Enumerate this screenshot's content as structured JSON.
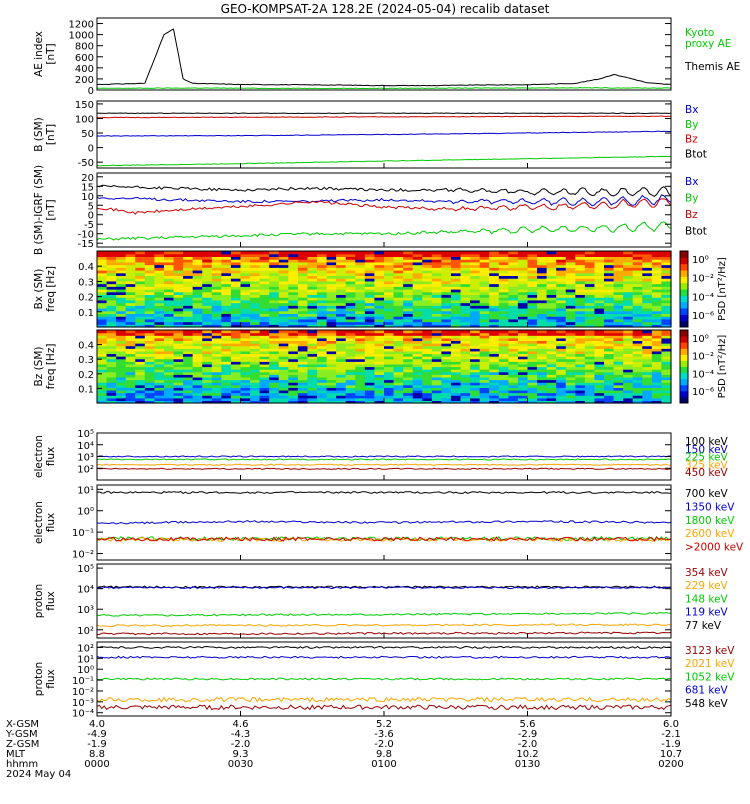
{
  "title": "GEO-KOMPSAT-2A 128.2E (2024-05-04) recalib dataset",
  "colors": {
    "black": "#000000",
    "red": "#cc0000",
    "blue": "#0000cc",
    "green": "#00cc00",
    "orange": "#ffa500",
    "darkred": "#990000",
    "lime": "#00ff00"
  },
  "chart_data": [
    {
      "type": "line",
      "ylabel": "AE index\n[nT]",
      "yticks": [
        "1200",
        "1000",
        "800",
        "600",
        "400",
        "200",
        "0"
      ],
      "ylim": [
        0,
        1300
      ],
      "legend": [
        {
          "label": "Kyoto\nproxy AE",
          "color": "#00cc00"
        },
        {
          "label": "Themis AE",
          "color": "#000000"
        }
      ],
      "series": [
        {
          "name": "Themis AE",
          "color": "#000000",
          "x": [
            0,
            5,
            10,
            14,
            16,
            18,
            20,
            22,
            25,
            30,
            40,
            50,
            60,
            70,
            80,
            90,
            100,
            105,
            108,
            112,
            115,
            118,
            120
          ],
          "y": [
            100,
            110,
            120,
            1000,
            1100,
            200,
            120,
            115,
            110,
            100,
            95,
            90,
            80,
            80,
            90,
            95,
            120,
            200,
            280,
            200,
            130,
            110,
            100
          ]
        },
        {
          "name": "Kyoto proxy AE",
          "color": "#00cc00",
          "x": [
            0,
            20,
            40,
            60,
            80,
            100,
            120
          ],
          "y": [
            30,
            35,
            30,
            30,
            35,
            40,
            35
          ]
        }
      ]
    },
    {
      "type": "line",
      "ylabel": "B (SM)\n[nT]",
      "yticks": [
        "150",
        "100",
        "50",
        "0",
        "-50"
      ],
      "ylim": [
        -70,
        160
      ],
      "legend": [
        {
          "label": "Bx",
          "color": "#0000cc"
        },
        {
          "label": "By",
          "color": "#00cc00"
        },
        {
          "label": "Bz",
          "color": "#cc0000"
        },
        {
          "label": "Btot",
          "color": "#000000"
        }
      ],
      "series": [
        {
          "name": "Btot",
          "color": "#000000",
          "x": [
            0,
            120
          ],
          "y": [
            118,
            118
          ]
        },
        {
          "name": "Bz",
          "color": "#cc0000",
          "x": [
            0,
            120
          ],
          "y": [
            103,
            108
          ]
        },
        {
          "name": "Bx",
          "color": "#0000cc",
          "x": [
            0,
            30,
            60,
            90,
            120
          ],
          "y": [
            40,
            41,
            45,
            50,
            56
          ]
        },
        {
          "name": "By",
          "color": "#00cc00",
          "x": [
            0,
            30,
            60,
            90,
            120
          ],
          "y": [
            -62,
            -55,
            -46,
            -38,
            -30
          ]
        }
      ]
    },
    {
      "type": "line",
      "ylabel": "B (SM)-IGRF (SM)\n[nT]",
      "yticks": [
        "20",
        "15",
        "10",
        "5",
        "0",
        "-5",
        "-10",
        "-15"
      ],
      "ylim": [
        -17,
        22
      ],
      "legend": [
        {
          "label": "Bx",
          "color": "#0000cc"
        },
        {
          "label": "By",
          "color": "#00cc00"
        },
        {
          "label": "Bz",
          "color": "#cc0000"
        },
        {
          "label": "Btot",
          "color": "#000000"
        }
      ],
      "series": [
        {
          "name": "Btot",
          "color": "#000000",
          "x": [
            0,
            15,
            30,
            45,
            60,
            75,
            90,
            105,
            120
          ],
          "y": [
            15,
            14,
            13,
            14,
            13,
            13,
            12,
            12,
            12
          ]
        },
        {
          "name": "Bx",
          "color": "#0000cc",
          "x": [
            0,
            15,
            30,
            45,
            60,
            75,
            90,
            105,
            120
          ],
          "y": [
            9,
            8,
            7,
            7,
            8,
            7,
            7,
            7,
            8
          ]
        },
        {
          "name": "Bz",
          "color": "#cc0000",
          "x": [
            0,
            8,
            20,
            35,
            45,
            60,
            75,
            90,
            105,
            120
          ],
          "y": [
            4,
            1,
            3,
            5,
            7,
            4,
            3,
            4,
            5,
            7
          ]
        },
        {
          "name": "By",
          "color": "#00cc00",
          "x": [
            0,
            15,
            30,
            45,
            60,
            75,
            90,
            105,
            120
          ],
          "y": [
            -13,
            -12,
            -11,
            -10,
            -10,
            -9,
            -8,
            -7,
            -6
          ]
        }
      ]
    },
    {
      "type": "heatmap",
      "ylabel": "Bx (SM)\nfreq [Hz]",
      "yticks": [
        "0.4",
        "0.3",
        "0.2",
        "0.1"
      ],
      "ylim": [
        0,
        0.5
      ],
      "colorbar": {
        "label": "PSD [nT²/Hz]",
        "ticks": [
          "10⁰",
          "10⁻²",
          "10⁻⁴",
          "10⁻⁶"
        ]
      }
    },
    {
      "type": "heatmap",
      "ylabel": "Bz (SM)\nfreq [Hz]",
      "yticks": [
        "0.4",
        "0.3",
        "0.2",
        "0.1"
      ],
      "ylim": [
        0,
        0.5
      ],
      "colorbar": {
        "label": "PSD [nT²/Hz]",
        "ticks": [
          "10⁰",
          "10⁻²",
          "10⁻⁴",
          "10⁻⁶"
        ]
      }
    },
    {
      "type": "line",
      "ylabel": "electron\nflux",
      "yscale": "log",
      "yticks": [
        "10⁵",
        "10⁴",
        "10³",
        "10²"
      ],
      "ylim_exp": [
        1,
        5
      ],
      "legend": [
        {
          "label": "100 keV",
          "color": "#000000"
        },
        {
          "label": "150 keV",
          "color": "#0000cc"
        },
        {
          "label": "225 keV",
          "color": "#00cc00"
        },
        {
          "label": "325 keV",
          "color": "#ffa500"
        },
        {
          "label": "450 keV",
          "color": "#990000"
        }
      ],
      "series": [
        {
          "name": "150 keV",
          "color": "#0000cc",
          "x": [
            0,
            120
          ],
          "y_exp": [
            3.0,
            3.0
          ]
        },
        {
          "name": "225 keV",
          "color": "#00cc00",
          "x": [
            0,
            120
          ],
          "y_exp": [
            2.75,
            2.75
          ]
        },
        {
          "name": "325 keV",
          "color": "#ffa500",
          "x": [
            0,
            120
          ],
          "y_exp": [
            2.3,
            2.3
          ]
        },
        {
          "name": "450 keV",
          "color": "#990000",
          "x": [
            0,
            120
          ],
          "y_exp": [
            1.95,
            1.95
          ]
        }
      ]
    },
    {
      "type": "line",
      "ylabel": "electron\nflux",
      "yscale": "log",
      "yticks": [
        "10¹",
        "10⁰",
        "10⁻¹",
        "10⁻²"
      ],
      "ylim_exp": [
        -2.3,
        1.2
      ],
      "legend": [
        {
          "label": "700 keV",
          "color": "#000000"
        },
        {
          "label": "1350 keV",
          "color": "#0000cc"
        },
        {
          "label": "1800 keV",
          "color": "#00cc00"
        },
        {
          "label": "2600 keV",
          "color": "#ffa500"
        },
        {
          "label": ">2000 keV",
          "color": "#cc0000"
        }
      ],
      "series": [
        {
          "name": "700 keV",
          "color": "#000000",
          "x": [
            0,
            120
          ],
          "y_exp": [
            0.85,
            0.85
          ]
        },
        {
          "name": "1350 keV",
          "color": "#0000cc",
          "x": [
            0,
            30,
            60,
            90,
            120
          ],
          "y_exp": [
            -0.6,
            -0.5,
            -0.55,
            -0.5,
            -0.55
          ]
        },
        {
          "name": "1800 keV",
          "color": "#00cc00",
          "x": [
            0,
            120
          ],
          "y_exp": [
            -1.3,
            -1.3
          ]
        },
        {
          "name": "2600 keV",
          "color": "#ffa500",
          "x": [
            0,
            120
          ],
          "y_exp": [
            -1.35,
            -1.35
          ]
        },
        {
          "name": ">2000 keV",
          "color": "#cc0000",
          "x": [
            0,
            120
          ],
          "y_exp": [
            -1.32,
            -1.32
          ]
        }
      ]
    },
    {
      "type": "line",
      "ylabel": "proton\nflux",
      "yscale": "log",
      "yticks": [
        "10⁵",
        "10⁴",
        "10³",
        "10²"
      ],
      "ylim_exp": [
        1.6,
        5.2
      ],
      "legend": [
        {
          "label": "354 keV",
          "color": "#990000"
        },
        {
          "label": "229 keV",
          "color": "#ffa500"
        },
        {
          "label": "148 keV",
          "color": "#00cc00"
        },
        {
          "label": "119 keV",
          "color": "#0000cc"
        },
        {
          "label": "77 keV",
          "color": "#000000"
        }
      ],
      "series": [
        {
          "name": "77 keV",
          "color": "#000000",
          "x": [
            0,
            120
          ],
          "y_exp": [
            4.08,
            4.08
          ]
        },
        {
          "name": "119 keV",
          "color": "#0000cc",
          "x": [
            0,
            120
          ],
          "y_exp": [
            4.05,
            4.05
          ]
        },
        {
          "name": "148 keV",
          "color": "#00cc00",
          "x": [
            0,
            120
          ],
          "y_exp": [
            2.7,
            2.8
          ]
        },
        {
          "name": "229 keV",
          "color": "#ffa500",
          "x": [
            0,
            120
          ],
          "y_exp": [
            2.2,
            2.25
          ]
        },
        {
          "name": "354 keV",
          "color": "#990000",
          "x": [
            0,
            120
          ],
          "y_exp": [
            1.8,
            1.85
          ]
        }
      ]
    },
    {
      "type": "line",
      "ylabel": "proton\nflux",
      "yscale": "log",
      "yticks": [
        "10²",
        "10¹",
        "10⁰",
        "10⁻¹",
        "10⁻²",
        "10⁻³",
        "10⁻⁴"
      ],
      "ylim_exp": [
        -4.3,
        2.5
      ],
      "legend": [
        {
          "label": "3123 keV",
          "color": "#990000"
        },
        {
          "label": "2021 keV",
          "color": "#ffa500"
        },
        {
          "label": "1052 keV",
          "color": "#00cc00"
        },
        {
          "label": "681 keV",
          "color": "#0000cc"
        },
        {
          "label": "548 keV",
          "color": "#000000"
        }
      ],
      "series": [
        {
          "name": "548 keV",
          "color": "#000000",
          "x": [
            0,
            120
          ],
          "y_exp": [
            2.0,
            2.0
          ]
        },
        {
          "name": "681 keV",
          "color": "#0000cc",
          "x": [
            0,
            120
          ],
          "y_exp": [
            1.1,
            1.1
          ]
        },
        {
          "name": "1052 keV",
          "color": "#00cc00",
          "x": [
            0,
            120
          ],
          "y_exp": [
            -0.9,
            -0.9
          ]
        },
        {
          "name": "2021 keV",
          "color": "#ffa500",
          "x": [
            0,
            120
          ],
          "y_exp": [
            -2.8,
            -2.8
          ]
        },
        {
          "name": "3123 keV",
          "color": "#990000",
          "x": [
            0,
            120
          ],
          "y_exp": [
            -3.5,
            -3.5
          ]
        }
      ]
    }
  ],
  "xaxis": {
    "minutes": [
      0,
      30,
      60,
      90,
      120
    ],
    "rows": [
      {
        "label": "X-GSM",
        "values": [
          "4.0",
          "4.6",
          "5.2",
          "5.6",
          "6.0"
        ]
      },
      {
        "label": "Y-GSM",
        "values": [
          "-4.9",
          "-4.3",
          "-3.6",
          "-2.9",
          "-2.1"
        ]
      },
      {
        "label": "Z-GSM",
        "values": [
          "-1.9",
          "-2.0",
          "-2.0",
          "-2.0",
          "-1.9"
        ]
      },
      {
        "label": "MLT",
        "values": [
          "8.8",
          "9.3",
          "9.8",
          "10.2",
          "10.7"
        ]
      },
      {
        "label": "hhmm",
        "values": [
          "0000",
          "0030",
          "0100",
          "0130",
          "0200"
        ]
      }
    ],
    "date": "2024 May 04"
  }
}
